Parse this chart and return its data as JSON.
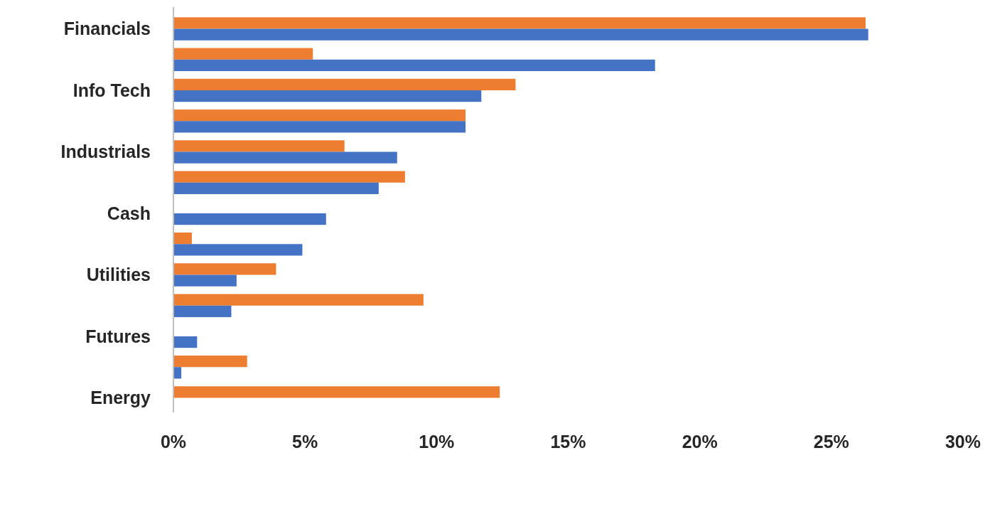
{
  "chart_data": {
    "type": "bar",
    "orientation": "horizontal",
    "categories": [
      "Financials",
      null,
      "Info Tech",
      null,
      "Industrials",
      null,
      "Cash",
      null,
      "Utilities",
      null,
      "Futures",
      null,
      "Energy"
    ],
    "series": [
      {
        "color": "#ed7d31",
        "values": [
          26.3,
          5.3,
          13.0,
          11.1,
          6.5,
          8.8,
          null,
          0.7,
          3.9,
          9.5,
          null,
          2.8,
          12.4
        ]
      },
      {
        "color": "#4472c4",
        "values": [
          26.4,
          18.3,
          11.7,
          11.1,
          8.5,
          7.8,
          5.8,
          4.9,
          2.4,
          2.2,
          0.9,
          0.3,
          null
        ]
      }
    ],
    "xlim": [
      0,
      30
    ],
    "xticks": [
      {
        "value": 0,
        "label": "0%"
      },
      {
        "value": 5,
        "label": "5%"
      },
      {
        "value": 10,
        "label": "10%"
      },
      {
        "value": 15,
        "label": "15%"
      },
      {
        "value": 20,
        "label": "20%"
      },
      {
        "value": 25,
        "label": "25%"
      },
      {
        "value": 30,
        "label": "30%"
      }
    ],
    "grid": false
  }
}
